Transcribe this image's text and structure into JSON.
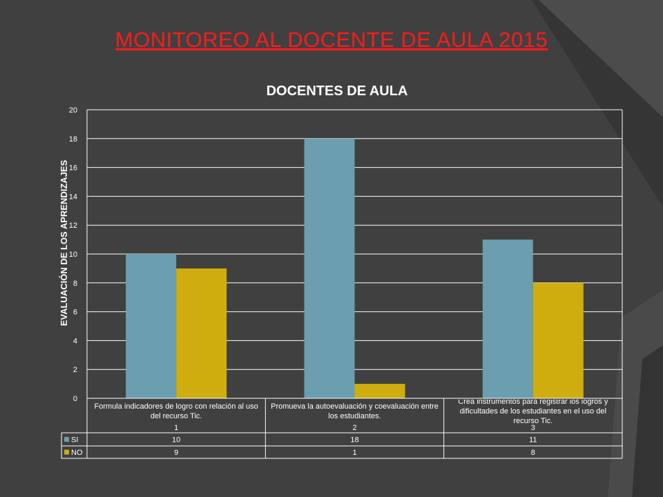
{
  "slide": {
    "title": "MONITOREO AL DOCENTE DE AULA  2015"
  },
  "colors": {
    "background": "#404040",
    "title": "#ff1a1a",
    "si": "#6b9eaf",
    "no": "#cfad0e",
    "gridline": "#ffffff",
    "text": "#ffffff"
  },
  "chart_data": {
    "type": "bar",
    "title": "DOCENTES DE AULA",
    "ylabel": "EVALUACIÓN DE LOS APRENDIZAJES",
    "xlabel": "",
    "ylim": [
      0,
      20
    ],
    "yticks": [
      0,
      2,
      4,
      6,
      8,
      10,
      12,
      14,
      16,
      18,
      20
    ],
    "grid": true,
    "legend": "data-table",
    "categories": [
      {
        "label": "Formula indicadores de logro con relación al uso del recurso Tic.",
        "number": "1"
      },
      {
        "label": "Promueva la autoevaluación y coevaluación entre los estudiantes.",
        "number": "2"
      },
      {
        "label": "Crea instrumentos para registrar los logros y dificultades de los estudiantes en el uso del recurso Tic.",
        "number": "3"
      }
    ],
    "series": [
      {
        "name": "SI",
        "values": [
          10,
          18,
          11
        ],
        "color": "#6b9eaf"
      },
      {
        "name": "NO",
        "values": [
          9,
          1,
          8
        ],
        "color": "#cfad0e"
      }
    ]
  }
}
